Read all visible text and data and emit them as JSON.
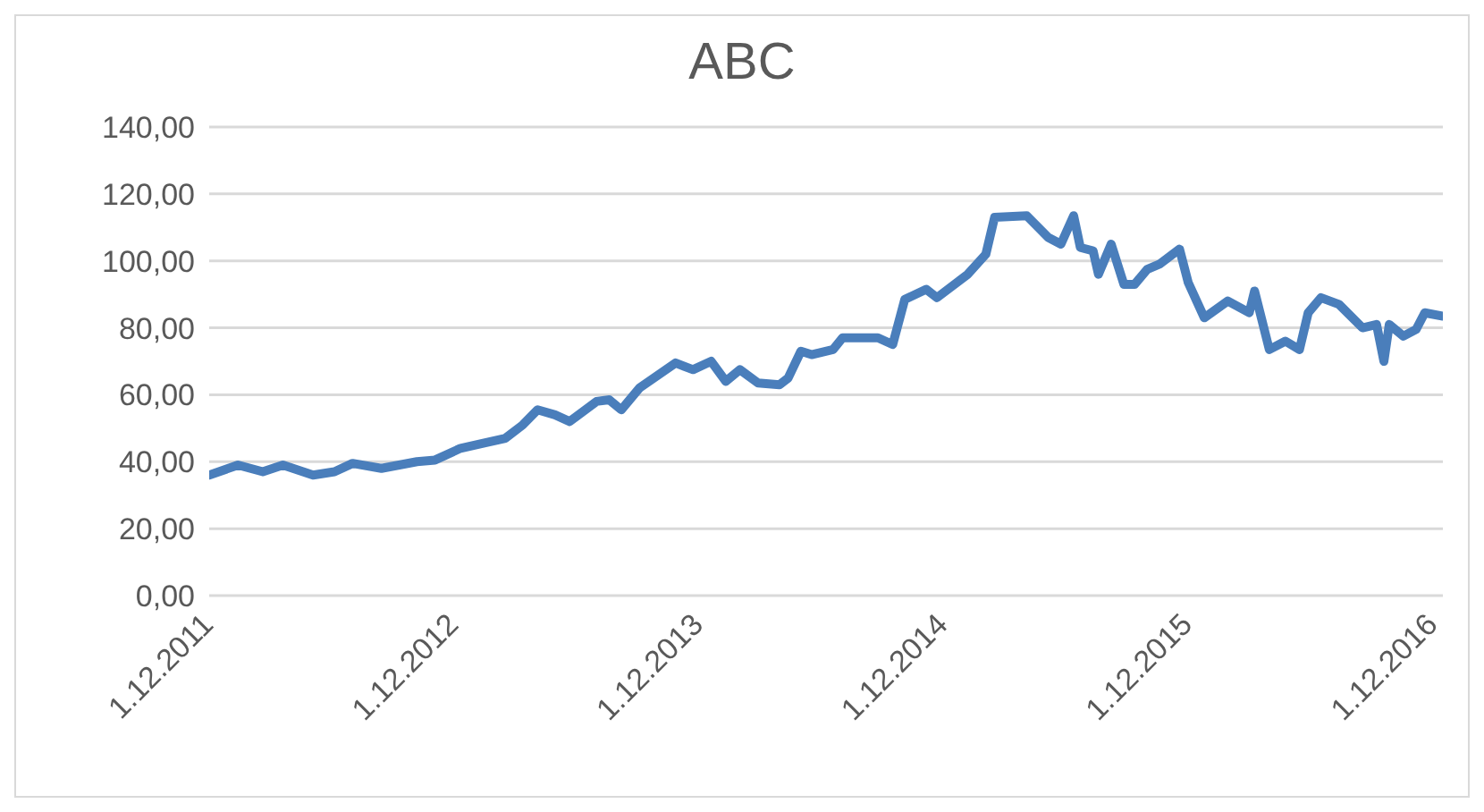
{
  "chart_data": {
    "type": "line",
    "title": "ABC",
    "x": [
      "2011-12-01",
      "2012-01-13",
      "2012-02-19",
      "2012-03-20",
      "2012-05-04",
      "2012-06-05",
      "2012-07-02",
      "2012-08-14",
      "2012-10-06",
      "2012-11-02",
      "2012-12-10",
      "2013-01-13",
      "2013-02-15",
      "2013-03-13",
      "2013-04-04",
      "2013-04-30",
      "2013-05-22",
      "2013-07-01",
      "2013-07-20",
      "2013-08-07",
      "2013-09-03",
      "2013-10-27",
      "2013-11-22",
      "2013-12-19",
      "2014-01-10",
      "2014-01-31",
      "2014-02-27",
      "2014-03-31",
      "2014-04-13",
      "2014-05-02",
      "2014-05-18",
      "2014-06-19",
      "2014-07-03",
      "2014-08-25",
      "2014-09-16",
      "2014-10-04",
      "2014-11-05",
      "2014-11-21",
      "2015-01-06",
      "2015-02-02",
      "2015-02-15",
      "2015-04-04",
      "2015-05-06",
      "2015-05-25",
      "2015-06-13",
      "2015-06-23",
      "2015-07-12",
      "2015-07-20",
      "2015-08-08",
      "2015-08-27",
      "2015-09-12",
      "2015-10-01",
      "2015-10-19",
      "2015-11-18",
      "2015-12-01",
      "2015-12-25",
      "2016-01-29",
      "2016-03-01",
      "2016-03-09",
      "2016-03-31",
      "2016-04-24",
      "2016-05-15",
      "2016-05-28",
      "2016-06-16",
      "2016-07-13",
      "2016-08-17",
      "2016-09-07",
      "2016-09-18",
      "2016-09-26",
      "2016-10-17",
      "2016-11-05",
      "2016-11-18",
      "2016-12-15"
    ],
    "series": [
      {
        "color": "#4a7ebb",
        "values": [
          36,
          39,
          37,
          39,
          36,
          37,
          39.5,
          38,
          40,
          40.5,
          44,
          45.5,
          47,
          51,
          55.5,
          54,
          52,
          58,
          58.5,
          55.5,
          62,
          69.5,
          67.5,
          70,
          64,
          67.5,
          63.5,
          63,
          65,
          73,
          72,
          73.5,
          77,
          77,
          75,
          88.5,
          91.5,
          89,
          96,
          102,
          113,
          113.5,
          107,
          105,
          113.5,
          104,
          103,
          96,
          105,
          93,
          93,
          97.5,
          99,
          103.5,
          93.5,
          83,
          88,
          84.5,
          91,
          73.5,
          76,
          73.5,
          84.5,
          89,
          87,
          80,
          81,
          70,
          81,
          77.5,
          79.5,
          84.5,
          83.5
        ]
      }
    ],
    "xlim": [
      "2011-12-01",
      "2016-12-15"
    ],
    "xticks": [
      {
        "value": "2011-12-01",
        "label": "1.12.2011"
      },
      {
        "value": "2012-12-01",
        "label": "1.12.2012"
      },
      {
        "value": "2013-12-01",
        "label": "1.12.2013"
      },
      {
        "value": "2014-12-01",
        "label": "1.12.2014"
      },
      {
        "value": "2015-12-01",
        "label": "1.12.2015"
      },
      {
        "value": "2016-12-01",
        "label": "1.12.2016"
      }
    ],
    "ylim": [
      0,
      140
    ],
    "yticks": [
      {
        "value": 0,
        "label": "0,00"
      },
      {
        "value": 20,
        "label": "20,00"
      },
      {
        "value": 40,
        "label": "40,00"
      },
      {
        "value": 60,
        "label": "60,00"
      },
      {
        "value": 80,
        "label": "80,00"
      },
      {
        "value": 100,
        "label": "100,00"
      },
      {
        "value": 120,
        "label": "120,00"
      },
      {
        "value": 140,
        "label": "140,00"
      }
    ],
    "grid": "y",
    "legend": false,
    "marker": "none",
    "line_style": "solid"
  }
}
